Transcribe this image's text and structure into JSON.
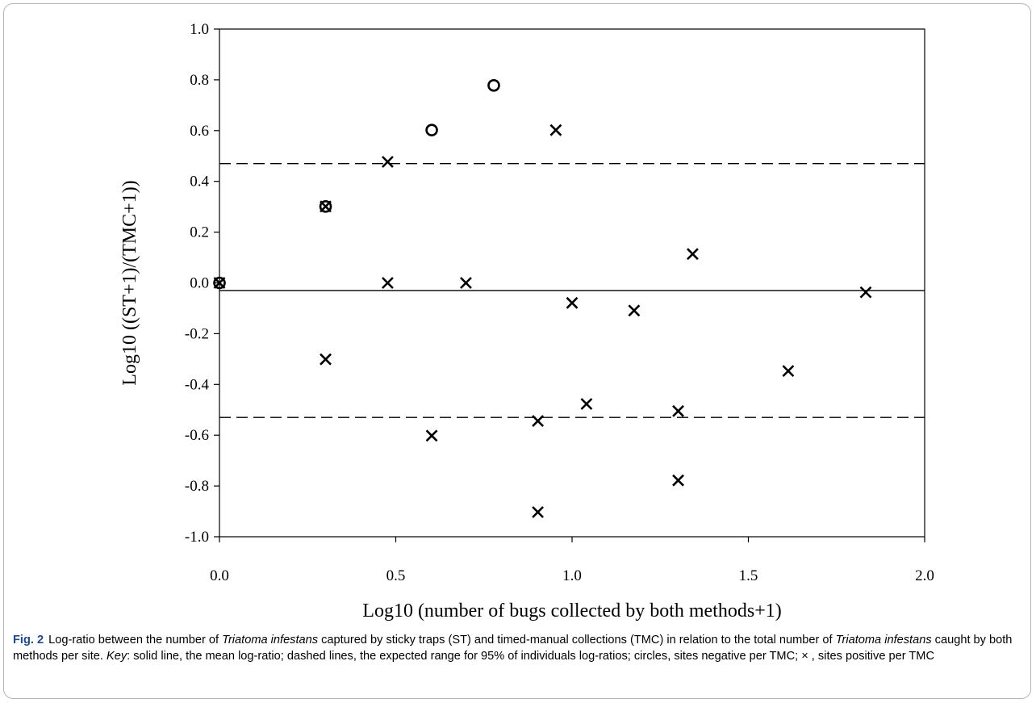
{
  "chart_data": {
    "type": "scatter",
    "xlabel": "Log10 (number of bugs collected by both methods+1)",
    "ylabel": "Log10 ((ST+1)/(TMC+1))",
    "xlim": [
      0.0,
      2.0
    ],
    "ylim": [
      -1.0,
      1.0
    ],
    "x_ticks": [
      "0.0",
      "0.5",
      "1.0",
      "1.5",
      "2.0"
    ],
    "y_ticks": [
      "1.0",
      "0.8",
      "0.6",
      "0.4",
      "0.2",
      "0.0",
      "-0.2",
      "-0.4",
      "-0.6",
      "-0.8",
      "-1.0"
    ],
    "grid": false,
    "series": [
      {
        "name": "sites negative per TMC",
        "marker": "circle",
        "x": [
          0.0,
          0.301,
          0.602,
          0.778
        ],
        "y": [
          0.0,
          0.301,
          0.602,
          0.778
        ]
      },
      {
        "name": "sites positive per TMC",
        "marker": "cross",
        "x": [
          0.0,
          0.301,
          0.301,
          0.477,
          0.477,
          0.602,
          0.699,
          0.903,
          0.903,
          0.954,
          1.0,
          1.041,
          1.176,
          1.301,
          1.301,
          1.342,
          1.613,
          1.833
        ],
        "y": [
          0.0,
          0.301,
          -0.301,
          0.477,
          0.0,
          -0.602,
          0.0,
          -0.544,
          -0.903,
          0.602,
          -0.079,
          -0.477,
          -0.109,
          -0.505,
          -0.778,
          0.114,
          -0.347,
          -0.037
        ]
      }
    ],
    "lines": [
      {
        "kind": "solid",
        "label": "mean log-ratio",
        "y": -0.03
      },
      {
        "kind": "dashed",
        "label": "upper 95% range",
        "y": 0.47
      },
      {
        "kind": "dashed",
        "label": "lower 95% range",
        "y": -0.53
      }
    ]
  },
  "caption": {
    "label": "Fig. 2",
    "t1": "Log-ratio between the number of ",
    "species1": "Triatoma infestans",
    "t2": " captured by sticky traps (ST) and timed-manual collections (TMC) in relation to the total number of ",
    "species2": "Triatoma infestans",
    "t3": " caught by both methods per site. ",
    "key_label": "Key",
    "t4": ": solid line, the mean log-ratio; dashed lines, the expected range for 95% of individuals log-ratios; circles, sites negative per TMC; × , sites positive per TMC"
  }
}
